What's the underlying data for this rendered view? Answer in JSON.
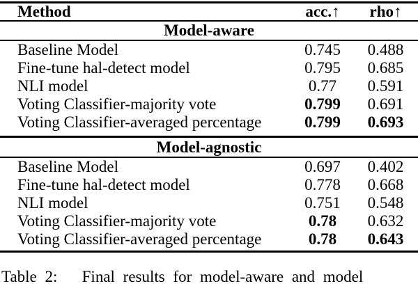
{
  "table": {
    "header": {
      "method": "Method",
      "acc": "acc.",
      "rho": "rho",
      "arrow": "↑"
    },
    "sections": [
      {
        "title": "Model-aware",
        "rows": [
          {
            "method": "Baseline Model",
            "acc": "0.745",
            "rho": "0.488"
          },
          {
            "method": "Fine-tune hal-detect model",
            "acc": "0.795",
            "rho": "0.685"
          },
          {
            "method": "NLI model",
            "acc": "0.77",
            "rho": "0.591"
          },
          {
            "method": "Voting Classifier-majority vote",
            "acc": "0.799",
            "rho": "0.691"
          },
          {
            "method": "Voting Classifier-averaged percentage",
            "acc": "0.799",
            "rho": "0.693"
          }
        ]
      },
      {
        "title": "Model-agnostic",
        "rows": [
          {
            "method": "Baseline Model",
            "acc": "0.697",
            "rho": "0.402"
          },
          {
            "method": "Fine-tune hal-detect model",
            "acc": "0.778",
            "rho": "0.668"
          },
          {
            "method": "NLI model",
            "acc": "0.751",
            "rho": "0.548"
          },
          {
            "method": "Voting Classifier-majority vote",
            "acc": "0.78",
            "rho": "0.632"
          },
          {
            "method": "Voting Classifier-averaged percentage",
            "acc": "0.78",
            "rho": "0.643"
          }
        ]
      }
    ]
  },
  "caption": {
    "visible_text": "Table 2:   Final results for model-aware and model"
  },
  "colors": {
    "text": "#000000",
    "background": "#ffffff",
    "rule": "#000000"
  }
}
